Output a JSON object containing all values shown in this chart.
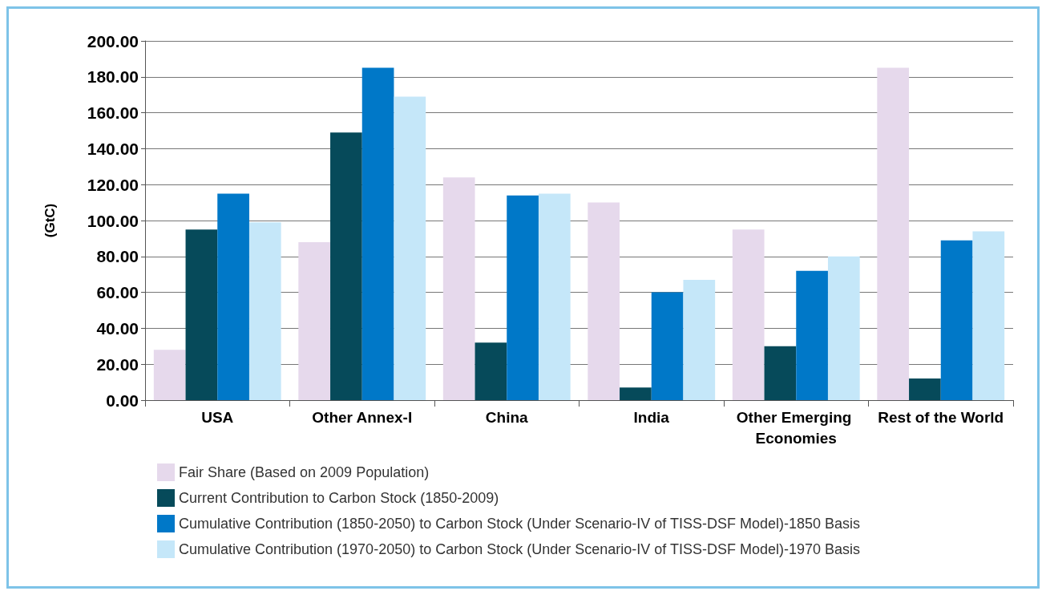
{
  "chart_data": {
    "type": "bar",
    "ylabel": "(GtC)",
    "categories": [
      "USA",
      "Other Annex-I",
      "China",
      "India",
      "Other Emerging Economies",
      "Rest of the World"
    ],
    "series": [
      {
        "name": "Fair Share (Based on 2009 Population)",
        "color": "#e6d9ec",
        "values": [
          28,
          88,
          124,
          110,
          95,
          185
        ]
      },
      {
        "name": "Current Contribution to Carbon Stock (1850-2009)",
        "color": "#064a5a",
        "values": [
          95,
          149,
          32,
          7,
          30,
          12
        ]
      },
      {
        "name": "Cumulative Contribution (1850-2050) to Carbon Stock (Under Scenario-IV of TISS-DSF Model)-1850 Basis",
        "color": "#0078c8",
        "values": [
          115,
          185,
          114,
          60,
          72,
          89
        ]
      },
      {
        "name": "Cumulative Contribution (1970-2050) to Carbon Stock (Under Scenario-IV of TISS-DSF Model)-1970 Basis",
        "color": "#c5e7f9",
        "values": [
          99,
          169,
          115,
          67,
          80,
          94
        ]
      }
    ],
    "ylim": [
      0,
      200
    ],
    "yticks": [
      {
        "value": 0,
        "label": "0.00"
      },
      {
        "value": 20,
        "label": "20.00"
      },
      {
        "value": 40,
        "label": "40.00"
      },
      {
        "value": 60,
        "label": "60.00"
      },
      {
        "value": 80,
        "label": "80.00"
      },
      {
        "value": 100,
        "label": "100.00"
      },
      {
        "value": 120,
        "label": "120.00"
      },
      {
        "value": 140,
        "label": "140.00"
      },
      {
        "value": 160,
        "label": "160.00"
      },
      {
        "value": 180,
        "label": "180.00"
      },
      {
        "value": 200,
        "label": "200.00"
      }
    ],
    "grid": "y",
    "legend": "bottom left"
  }
}
